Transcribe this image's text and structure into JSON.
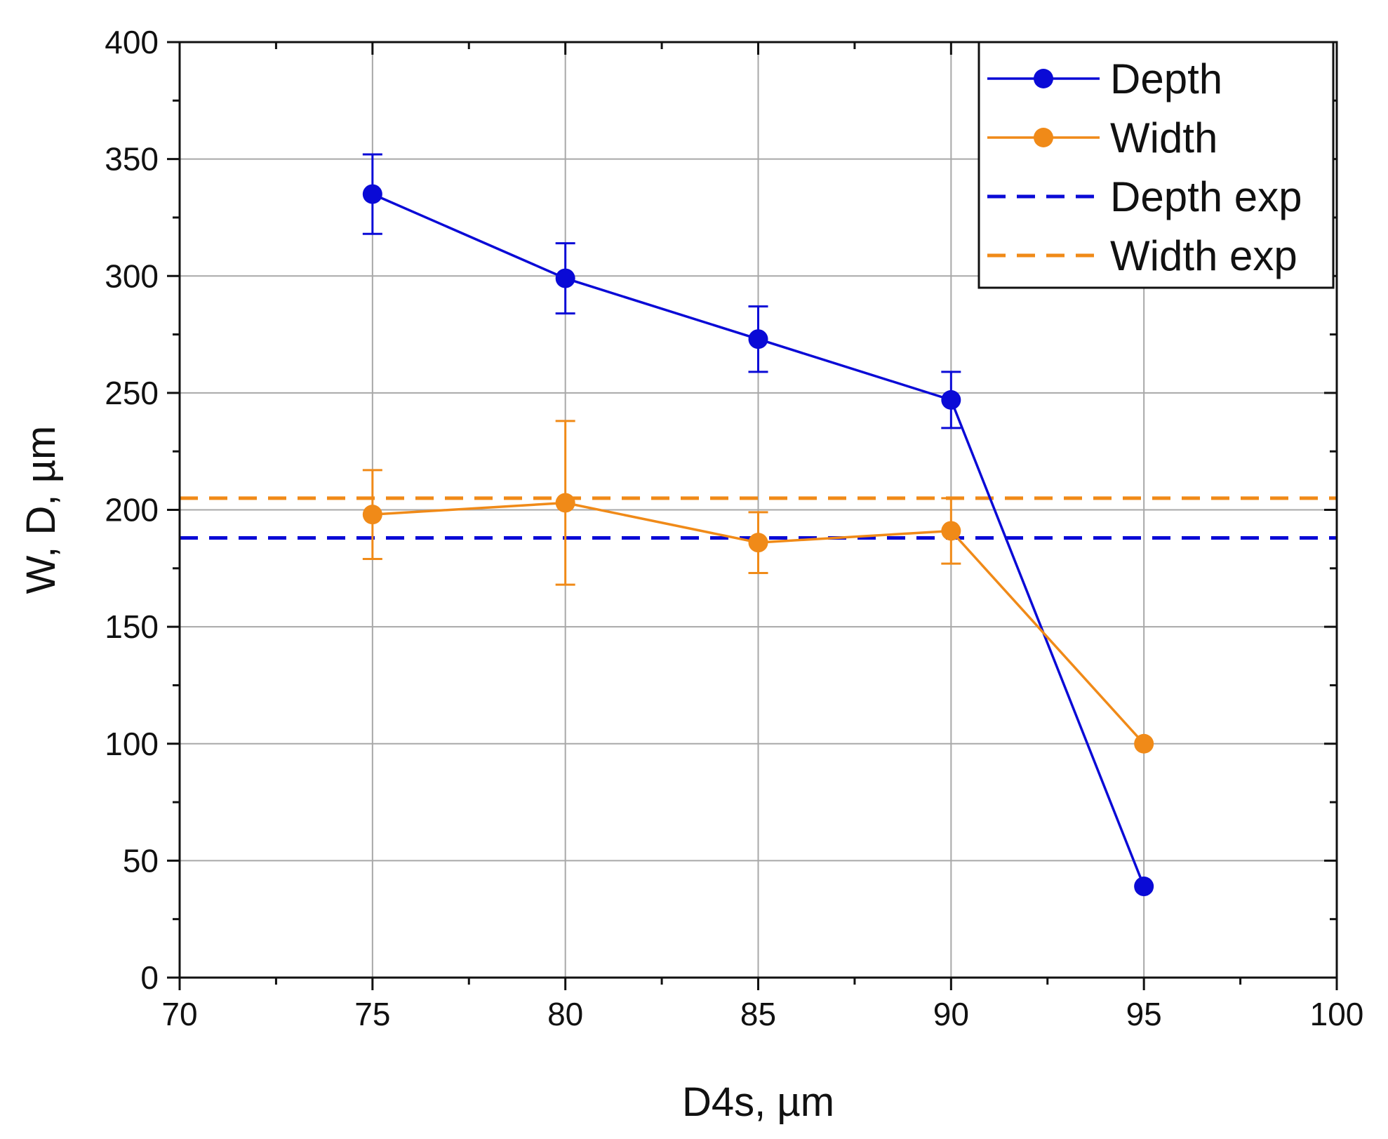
{
  "chart_data": {
    "type": "line",
    "xlabel": "D4s, µm",
    "ylabel": "W, D, µm",
    "xlim": [
      70,
      100
    ],
    "ylim": [
      0,
      400
    ],
    "x_ticks": [
      "70",
      "75",
      "80",
      "85",
      "90",
      "95",
      "100"
    ],
    "y_ticks": [
      "0",
      "50",
      "100",
      "150",
      "200",
      "250",
      "300",
      "350",
      "400"
    ],
    "grid": true,
    "legend_position": "top-right",
    "series": [
      {
        "name": "Depth",
        "color": "#0a0ad6",
        "style": "line-marker",
        "x": [
          75,
          80,
          85,
          90,
          95
        ],
        "y": [
          335,
          299,
          273,
          247,
          39
        ],
        "err_low": [
          318,
          284,
          259,
          235,
          null
        ],
        "err_high": [
          352,
          314,
          287,
          259,
          null
        ]
      },
      {
        "name": "Width",
        "color": "#f08a18",
        "style": "line-marker",
        "x": [
          75,
          80,
          85,
          90,
          95
        ],
        "y": [
          198,
          203,
          186,
          191,
          100
        ],
        "err_low": [
          179,
          168,
          173,
          177,
          null
        ],
        "err_high": [
          217,
          238,
          199,
          205,
          null
        ]
      },
      {
        "name": "Depth exp",
        "color": "#0a0ad6",
        "style": "dashed-hline",
        "y": 188
      },
      {
        "name": "Width exp",
        "color": "#f08a18",
        "style": "dashed-hline",
        "y": 205
      }
    ]
  }
}
